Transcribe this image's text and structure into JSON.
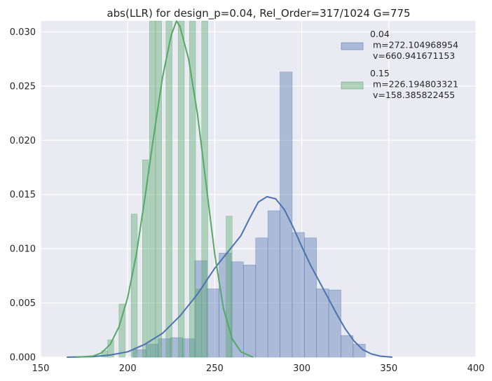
{
  "chart_data": {
    "type": "bar",
    "title": "abs(LLR) for design_p=0.04, Rel_Order=317/1024 G=775",
    "xlabel": "",
    "ylabel": "",
    "xlim": [
      150,
      400
    ],
    "ylim": [
      0,
      0.031
    ],
    "x_ticks": [
      "150",
      "200",
      "250",
      "300",
      "350",
      "400"
    ],
    "y_ticks": [
      "0.000",
      "0.005",
      "0.010",
      "0.015",
      "0.020",
      "0.025",
      "0.030"
    ],
    "grid": true,
    "legend_position": "top-right",
    "colors": {
      "background": "#eaeaf2",
      "grid": "#ffffff",
      "blue": "#4c72b0",
      "green": "#55a868"
    },
    "series": [
      {
        "name": "0.04\n m=272.104968954\n v=660.941671153",
        "color": "#4c72b0",
        "hist": [
          {
            "x0": 203,
            "x1": 210.5,
            "y": 0.0007
          },
          {
            "x0": 210.5,
            "x1": 217.5,
            "y": 0.0012
          },
          {
            "x0": 217.5,
            "x1": 224.5,
            "y": 0.0017
          },
          {
            "x0": 224.5,
            "x1": 231.5,
            "y": 0.0018
          },
          {
            "x0": 231.5,
            "x1": 238.5,
            "y": 0.0017
          },
          {
            "x0": 238.5,
            "x1": 245.5,
            "y": 0.0089
          },
          {
            "x0": 245.5,
            "x1": 252.5,
            "y": 0.0063
          },
          {
            "x0": 252.5,
            "x1": 259.5,
            "y": 0.0096
          },
          {
            "x0": 259.5,
            "x1": 266.5,
            "y": 0.0088
          },
          {
            "x0": 266.5,
            "x1": 273.5,
            "y": 0.0085
          },
          {
            "x0": 273.5,
            "x1": 280.5,
            "y": 0.011
          },
          {
            "x0": 280.5,
            "x1": 287.5,
            "y": 0.0135
          },
          {
            "x0": 287.5,
            "x1": 294.5,
            "y": 0.0263
          },
          {
            "x0": 294.5,
            "x1": 301.5,
            "y": 0.0115
          },
          {
            "x0": 301.5,
            "x1": 308.5,
            "y": 0.011
          },
          {
            "x0": 308.5,
            "x1": 315.5,
            "y": 0.0063
          },
          {
            "x0": 315.5,
            "x1": 322.5,
            "y": 0.0062
          },
          {
            "x0": 322.5,
            "x1": 329.5,
            "y": 0.002
          },
          {
            "x0": 329.5,
            "x1": 336.5,
            "y": 0.0012
          }
        ],
        "kde": [
          [
            165,
            0.0
          ],
          [
            180,
            5e-05
          ],
          [
            190,
            0.0002
          ],
          [
            200,
            0.0005
          ],
          [
            210,
            0.0012
          ],
          [
            220,
            0.0022
          ],
          [
            230,
            0.0038
          ],
          [
            240,
            0.0058
          ],
          [
            250,
            0.0082
          ],
          [
            260,
            0.0102
          ],
          [
            265,
            0.0112
          ],
          [
            270,
            0.0128
          ],
          [
            275,
            0.0143
          ],
          [
            280,
            0.0148
          ],
          [
            285,
            0.0146
          ],
          [
            290,
            0.0136
          ],
          [
            295,
            0.012
          ],
          [
            300,
            0.0102
          ],
          [
            305,
            0.0085
          ],
          [
            310,
            0.007
          ],
          [
            315,
            0.0055
          ],
          [
            320,
            0.004
          ],
          [
            325,
            0.0026
          ],
          [
            330,
            0.0015
          ],
          [
            335,
            0.0007
          ],
          [
            340,
            0.0003
          ],
          [
            345,
            0.0001
          ],
          [
            352,
            0.0
          ]
        ]
      },
      {
        "name": "0.15\n m=226.194803321\n v=158.385822455",
        "color": "#55a868",
        "hist": [
          {
            "x0": 185,
            "x1": 188.5,
            "y": 0.0006
          },
          {
            "x0": 188.5,
            "x1": 192,
            "y": 0.0016
          },
          {
            "x0": 195,
            "x1": 198.5,
            "y": 0.0049
          },
          {
            "x0": 202,
            "x1": 205.5,
            "y": 0.0132
          },
          {
            "x0": 208.5,
            "x1": 212,
            "y": 0.0182
          },
          {
            "x0": 212.5,
            "x1": 216,
            "y": 0.031
          },
          {
            "x0": 216,
            "x1": 219.5,
            "y": 0.031
          },
          {
            "x0": 222,
            "x1": 225.5,
            "y": 0.031
          },
          {
            "x0": 229,
            "x1": 232.5,
            "y": 0.031
          },
          {
            "x0": 235.5,
            "x1": 239,
            "y": 0.031
          },
          {
            "x0": 239,
            "x1": 242.5,
            "y": 0.0063
          },
          {
            "x0": 242.5,
            "x1": 246,
            "y": 0.031
          },
          {
            "x0": 256.5,
            "x1": 260,
            "y": 0.013
          }
        ],
        "kde": [
          [
            170,
            0.0
          ],
          [
            180,
            0.0001
          ],
          [
            185,
            0.0004
          ],
          [
            190,
            0.0012
          ],
          [
            195,
            0.0028
          ],
          [
            200,
            0.0055
          ],
          [
            205,
            0.0095
          ],
          [
            210,
            0.0148
          ],
          [
            215,
            0.0205
          ],
          [
            220,
            0.0258
          ],
          [
            225,
            0.0297
          ],
          [
            228,
            0.031
          ],
          [
            230,
            0.0305
          ],
          [
            235,
            0.0275
          ],
          [
            240,
            0.0225
          ],
          [
            245,
            0.016
          ],
          [
            250,
            0.0095
          ],
          [
            255,
            0.0045
          ],
          [
            260,
            0.0017
          ],
          [
            265,
            0.0005
          ],
          [
            272,
            0.0
          ]
        ]
      }
    ]
  }
}
